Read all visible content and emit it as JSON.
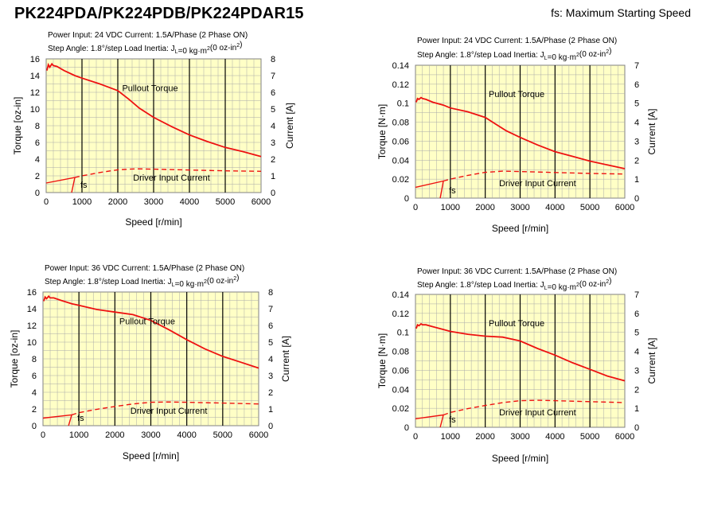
{
  "page": {
    "title": "PK224PDA/PK224PDB/PK224PDAR15",
    "fs_note": "fs: Maximum Starting Speed"
  },
  "colors": {
    "plot_bg": "#ffffc6",
    "curve": "#ee1111",
    "grid_major": "#000000",
    "grid_minor": "#aaaaaa"
  },
  "chart_data": [
    {
      "type": "line",
      "header1": "Power Input: 24 VDC  Current: 1.5A/Phase (2 Phase ON)",
      "header2": "Step Angle: 1.8°/step  Load Inertia: J",
      "header2_sub": "L",
      "header2_mid": "=0 kg·m",
      "header2_sup": "2",
      "header2_end": "(0 oz-in",
      "header2_sup2": "2",
      "header2_close": ")",
      "xlabel": "Speed [r/min]",
      "ylabel": "Torque [oz-in]",
      "y2label": "Current [A]",
      "xlim": [
        0,
        6000
      ],
      "ylim": [
        0,
        16
      ],
      "y2lim": [
        0,
        8
      ],
      "xticks": [
        "0",
        "1000",
        "2000",
        "3000",
        "4000",
        "5000",
        "6000"
      ],
      "yticks": [
        "0",
        "2",
        "4",
        "6",
        "8",
        "10",
        "12",
        "14",
        "16"
      ],
      "y2ticks": [
        "0",
        "1",
        "2",
        "3",
        "4",
        "5",
        "6",
        "7",
        "8"
      ],
      "annotations": {
        "torque": "Pullout Torque",
        "current": "Driver Input Current",
        "fs": "fs"
      },
      "fs_speed": 800,
      "series": [
        {
          "x": [
            20,
            60,
            100,
            160,
            200,
            300,
            500,
            800,
            1000,
            1500,
            2000,
            2300,
            2600,
            3000,
            3500,
            4000,
            4500,
            5000,
            5500,
            6000
          ],
          "values": [
            14.6,
            15.3,
            15.0,
            15.4,
            15.2,
            15.1,
            14.6,
            14.0,
            13.7,
            13.0,
            12.2,
            11.2,
            10.1,
            9.0,
            7.9,
            6.9,
            6.1,
            5.4,
            4.9,
            4.3
          ]
        },
        {
          "x": [
            0,
            800,
            1000,
            1500,
            2000,
            2500,
            3000,
            4000,
            5000,
            6000
          ],
          "values": [
            0.57,
            0.9,
            1.0,
            1.2,
            1.36,
            1.42,
            1.4,
            1.35,
            1.3,
            1.27
          ]
        }
      ]
    },
    {
      "type": "line",
      "header1": "Power Input: 24 VDC  Current: 1.5A/Phase (2 Phase ON)",
      "header2": "Step Angle: 1.8°/step  Load Inertia: J",
      "header2_sub": "L",
      "header2_mid": "=0 kg·m",
      "header2_sup": "2",
      "header2_end": "(0 oz-in",
      "header2_sup2": "2",
      "header2_close": ")",
      "xlabel": "Speed [r/min]",
      "ylabel": "Torque [N·m]",
      "y2label": "Current [A]",
      "xlim": [
        0,
        6000
      ],
      "ylim": [
        0,
        0.14
      ],
      "y2lim": [
        0,
        7
      ],
      "xticks": [
        "0",
        "1000",
        "2000",
        "3000",
        "4000",
        "5000",
        "6000"
      ],
      "yticks": [
        "0",
        "0.02",
        "0.04",
        "0.06",
        "0.08",
        "0.1",
        "0.12",
        "0.14"
      ],
      "y2ticks": [
        "0",
        "1",
        "2",
        "3",
        "4",
        "5",
        "6",
        "7"
      ],
      "annotations": {
        "torque": "Pullout Torque",
        "current": "Driver Input Current",
        "fs": "fs"
      },
      "fs_speed": 800,
      "series": [
        {
          "x": [
            20,
            60,
            100,
            160,
            200,
            300,
            500,
            800,
            1000,
            1500,
            2000,
            2300,
            2600,
            3000,
            3500,
            4000,
            4500,
            5000,
            5500,
            6000
          ],
          "values": [
            0.101,
            0.105,
            0.104,
            0.106,
            0.105,
            0.104,
            0.101,
            0.098,
            0.095,
            0.091,
            0.085,
            0.078,
            0.071,
            0.064,
            0.056,
            0.049,
            0.044,
            0.039,
            0.035,
            0.031
          ]
        },
        {
          "x": [
            0,
            800,
            1000,
            1500,
            2000,
            2500,
            3000,
            4000,
            5000,
            6000
          ],
          "values": [
            0.57,
            0.9,
            1.0,
            1.2,
            1.36,
            1.42,
            1.4,
            1.35,
            1.3,
            1.27
          ]
        }
      ]
    },
    {
      "type": "line",
      "header1": "Power Input: 36 VDC  Current: 1.5A/Phase (2 Phase ON)",
      "header2": "Step Angle: 1.8°/step  Load Inertia: J",
      "header2_sub": "L",
      "header2_mid": "=0 kg·m",
      "header2_sup": "2",
      "header2_end": "(0 oz-in",
      "header2_sup2": "2",
      "header2_close": ")",
      "xlabel": "Speed [r/min]",
      "ylabel": "Torque [oz-in]",
      "y2label": "Current [A]",
      "xlim": [
        0,
        6000
      ],
      "ylim": [
        0,
        16
      ],
      "y2lim": [
        0,
        8
      ],
      "xticks": [
        "0",
        "1000",
        "2000",
        "3000",
        "4000",
        "5000",
        "6000"
      ],
      "yticks": [
        "0",
        "2",
        "4",
        "6",
        "8",
        "10",
        "12",
        "14",
        "16"
      ],
      "y2ticks": [
        "0",
        "1",
        "2",
        "3",
        "4",
        "5",
        "6",
        "7",
        "8"
      ],
      "annotations": {
        "torque": "Pullout Torque",
        "current": "Driver Input Current",
        "fs": "fs"
      },
      "fs_speed": 800,
      "series": [
        {
          "x": [
            20,
            60,
            100,
            160,
            200,
            300,
            500,
            800,
            1000,
            1500,
            2000,
            2500,
            3000,
            3500,
            4000,
            4500,
            5000,
            5500,
            6000
          ],
          "values": [
            14.9,
            15.4,
            15.2,
            15.5,
            15.3,
            15.3,
            15.0,
            14.6,
            14.4,
            13.9,
            13.6,
            13.3,
            12.6,
            11.5,
            10.3,
            9.2,
            8.3,
            7.6,
            6.9
          ]
        },
        {
          "x": [
            0,
            800,
            1000,
            1500,
            2000,
            2500,
            3000,
            3500,
            4000,
            5000,
            6000
          ],
          "values": [
            0.45,
            0.65,
            0.78,
            0.98,
            1.15,
            1.3,
            1.4,
            1.42,
            1.4,
            1.35,
            1.3
          ]
        }
      ]
    },
    {
      "type": "line",
      "header1": "Power Input: 36 VDC  Current: 1.5A/Phase (2 Phase ON)",
      "header2": "Step Angle: 1.8°/step  Load Inertia: J",
      "header2_sub": "L",
      "header2_mid": "=0 kg·m",
      "header2_sup": "2",
      "header2_end": "(0 oz-in",
      "header2_sup2": "2",
      "header2_close": ")",
      "xlabel": "Speed [r/min]",
      "ylabel": "Torque [N·m]",
      "y2label": "Current [A]",
      "xlim": [
        0,
        6000
      ],
      "ylim": [
        0,
        0.14
      ],
      "y2lim": [
        0,
        7
      ],
      "xticks": [
        "0",
        "1000",
        "2000",
        "3000",
        "4000",
        "5000",
        "6000"
      ],
      "yticks": [
        "0",
        "0.02",
        "0.04",
        "0.06",
        "0.08",
        "0.1",
        "0.12",
        "0.14"
      ],
      "y2ticks": [
        "0",
        "1",
        "2",
        "3",
        "4",
        "5",
        "6",
        "7"
      ],
      "annotations": {
        "torque": "Pullout Torque",
        "current": "Driver Input Current",
        "fs": "fs"
      },
      "fs_speed": 800,
      "series": [
        {
          "x": [
            20,
            60,
            100,
            160,
            200,
            300,
            500,
            800,
            1000,
            1500,
            2000,
            2500,
            3000,
            3500,
            4000,
            4500,
            5000,
            5500,
            6000
          ],
          "values": [
            0.104,
            0.108,
            0.107,
            0.109,
            0.108,
            0.108,
            0.106,
            0.103,
            0.101,
            0.098,
            0.096,
            0.095,
            0.091,
            0.083,
            0.076,
            0.068,
            0.061,
            0.054,
            0.049
          ]
        },
        {
          "x": [
            0,
            800,
            1000,
            1500,
            2000,
            2500,
            3000,
            3500,
            4000,
            5000,
            6000
          ],
          "values": [
            0.45,
            0.65,
            0.78,
            0.98,
            1.15,
            1.3,
            1.4,
            1.42,
            1.4,
            1.35,
            1.3
          ]
        }
      ]
    }
  ]
}
